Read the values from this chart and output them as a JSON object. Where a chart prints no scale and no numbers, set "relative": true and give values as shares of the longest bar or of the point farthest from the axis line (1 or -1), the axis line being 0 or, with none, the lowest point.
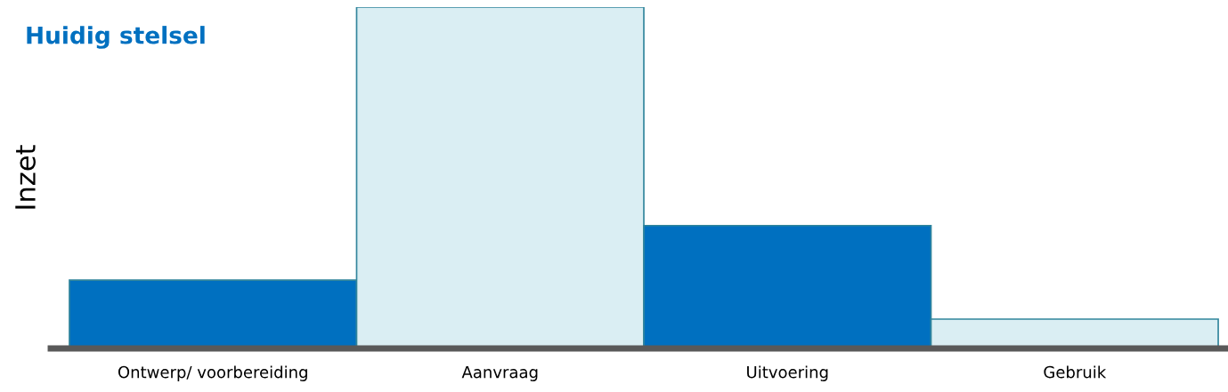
{
  "chart_data": {
    "type": "bar",
    "title": "Huidig stelsel",
    "ylabel": "Inzet",
    "relative": true,
    "categories": [
      "Ontwerp/ voorbereiding",
      "Aanvraag",
      "Uitvoering",
      "Gebruik"
    ],
    "values": [
      0.2,
      1,
      0.36,
      0.086
    ],
    "colors": [
      "#0070c0",
      "#daeef3",
      "#0070c0",
      "#daeef3"
    ],
    "grid": false,
    "legend": false
  }
}
